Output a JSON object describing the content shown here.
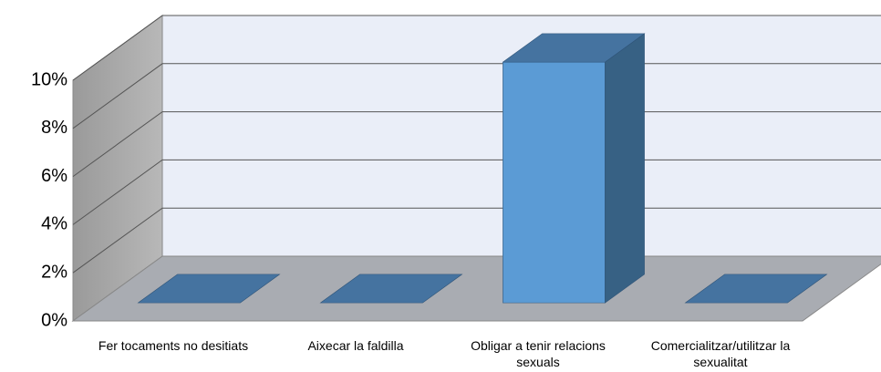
{
  "chart_data": {
    "type": "bar3d",
    "categories": [
      "Fer tocaments no desitiats",
      "Aixecar la faldilla",
      "Obligar a tenir relacions sexuals",
      "Comercialitzar/utilitzar la sexualitat"
    ],
    "values": [
      0,
      0,
      10,
      0
    ],
    "color": "#5b9bd5",
    "ylim": [
      0,
      10
    ],
    "yticks": [
      {
        "value": 0,
        "label": "0%"
      },
      {
        "value": 2,
        "label": "2%"
      },
      {
        "value": 4,
        "label": "4%"
      },
      {
        "value": 6,
        "label": "6%"
      },
      {
        "value": 8,
        "label": "8%"
      },
      {
        "value": 10,
        "label": "10%"
      }
    ],
    "grid": true
  }
}
